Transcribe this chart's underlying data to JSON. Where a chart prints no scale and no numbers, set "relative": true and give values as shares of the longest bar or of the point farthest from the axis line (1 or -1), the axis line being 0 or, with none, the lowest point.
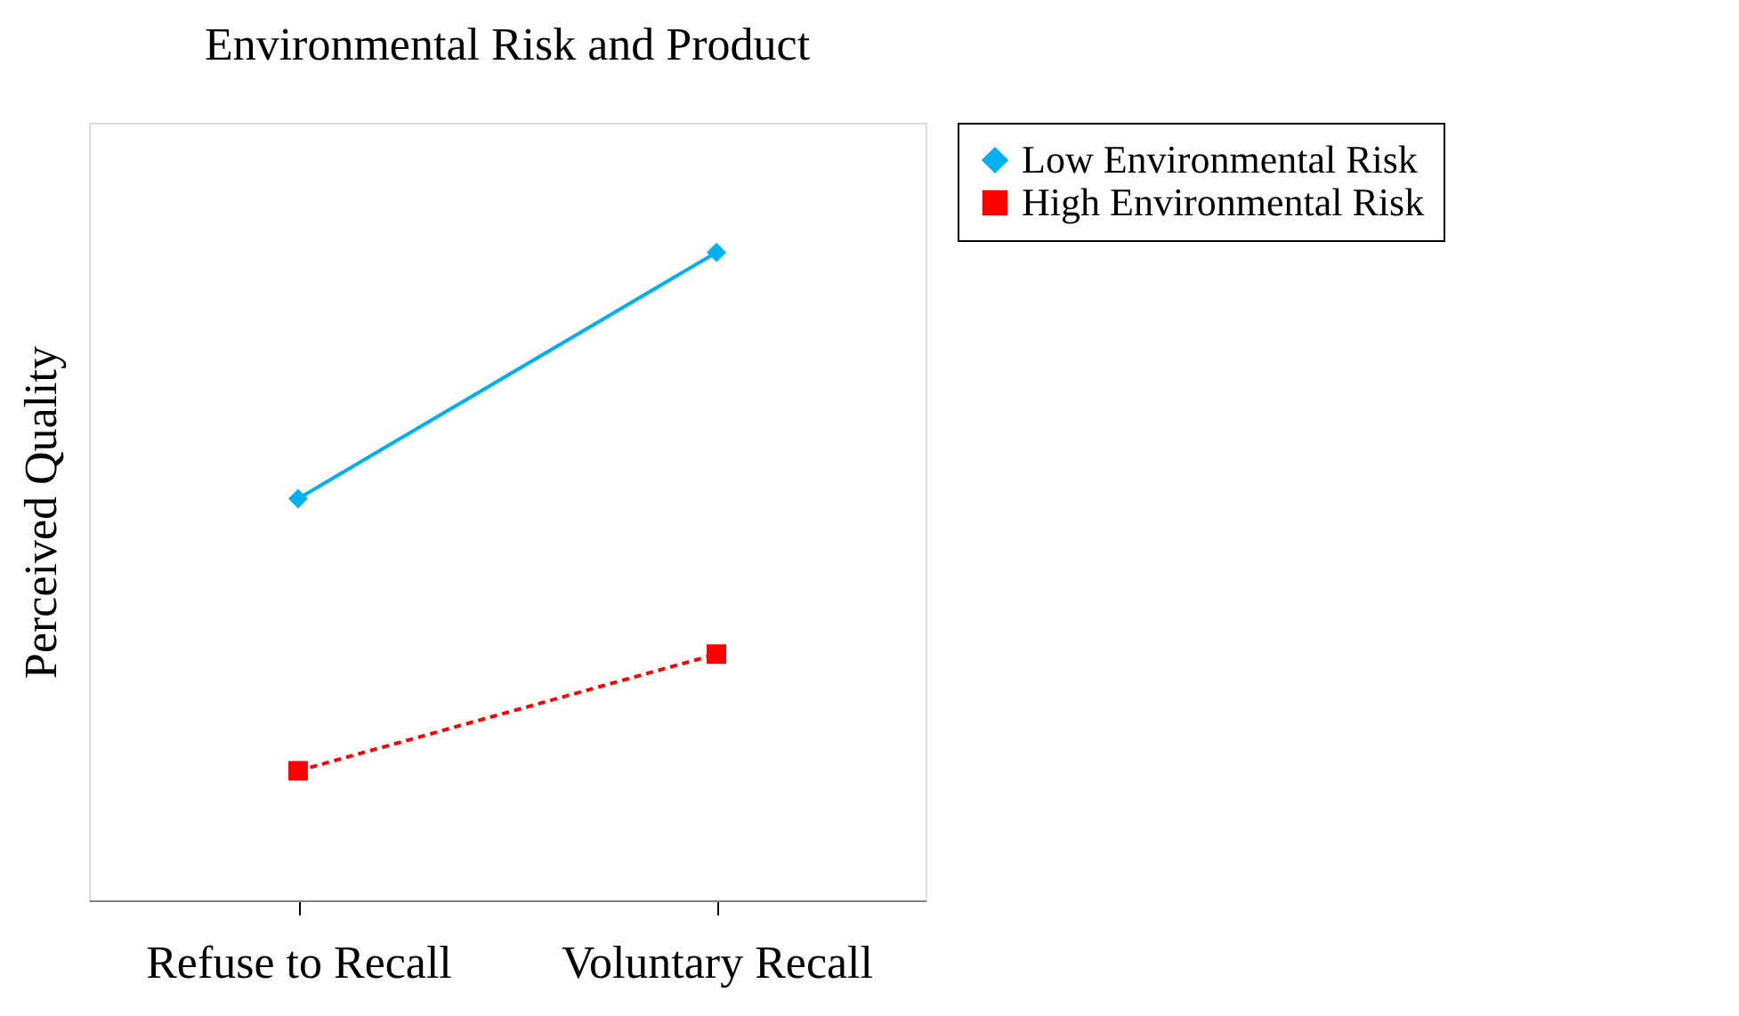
{
  "chart_data": {
    "type": "line",
    "title": "Environmental Risk and Product",
    "ylabel": "Perceived Quality",
    "relative": true,
    "categories": [
      "Refuse to Recall",
      "Voluntary Recall"
    ],
    "legend": "right",
    "grid": false,
    "series": [
      {
        "name": "Low Environmental Risk",
        "color": "#00b0f0",
        "values": [
          0.62,
          1
        ],
        "marker": "diamond",
        "line_style": "solid"
      },
      {
        "name": "High Environmental Risk",
        "color": "#ff0000",
        "values": [
          0.2,
          0.38
        ],
        "marker": "square",
        "line_style": "dashed"
      }
    ]
  }
}
